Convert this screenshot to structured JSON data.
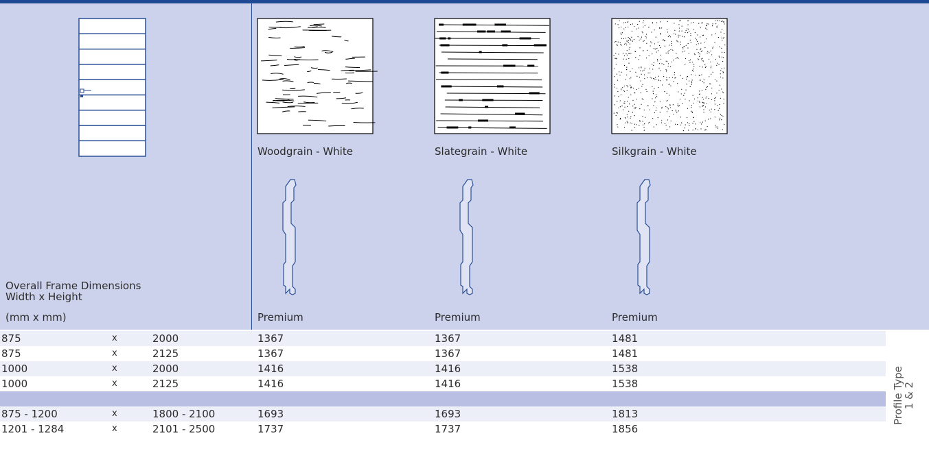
{
  "header": {
    "frame_label": [
      "Overall Frame Dimensions",
      "Width x Height",
      "(mm x mm)"
    ],
    "finishes": [
      {
        "name": "Woodgrain - White",
        "profile": "Premium"
      },
      {
        "name": "Slategrain - White",
        "profile": "Premium"
      },
      {
        "name": "Silkgrain - White",
        "profile": "Premium"
      }
    ]
  },
  "table": {
    "groups": [
      [
        [
          "875",
          "x",
          "2000",
          "1367",
          "1367",
          "1481"
        ],
        [
          "875",
          "x",
          "2125",
          "1367",
          "1367",
          "1481"
        ],
        [
          "1000",
          "x",
          "2000",
          "1416",
          "1416",
          "1538"
        ],
        [
          "1000",
          "x",
          "2125",
          "1416",
          "1416",
          "1538"
        ]
      ],
      [
        [
          "875 - 1200",
          "x",
          "1800 - 2100",
          "1693",
          "1693",
          "1813"
        ],
        [
          "1201 - 1284",
          "x",
          "2101 - 2500",
          "1737",
          "1737",
          "1856"
        ]
      ]
    ]
  },
  "side_label": [
    "Profile Type",
    "1 & 2"
  ]
}
